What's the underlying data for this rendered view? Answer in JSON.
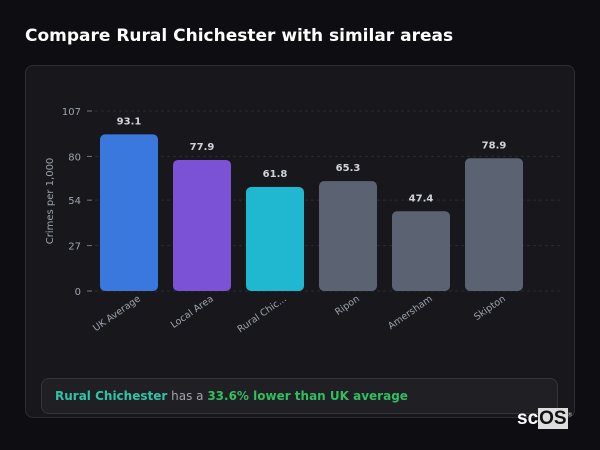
{
  "title": "Compare Rural Chichester with similar areas",
  "chart_data": {
    "type": "bar",
    "ylabel": "Crimes per 1,000",
    "ylim": [
      0,
      107
    ],
    "yticks": [
      0,
      27,
      54,
      80,
      107
    ],
    "grid": true,
    "categories": [
      "UK Average",
      "Local Area",
      "Rural Chic...",
      "Ripon",
      "Amersham",
      "Skipton"
    ],
    "values": [
      93.1,
      77.9,
      61.8,
      65.3,
      47.4,
      78.9
    ],
    "value_labels": [
      "93.1",
      "77.9",
      "61.8",
      "65.3",
      "47.4",
      "78.9"
    ],
    "colors": [
      "#3b78de",
      "#7b52d6",
      "#1fb8d0",
      "#5b6373",
      "#5b6373",
      "#5b6373"
    ]
  },
  "summary": {
    "area": "Rural Chichester",
    "middle": " has a ",
    "comparison": "33.6% lower than UK average"
  },
  "logo": {
    "text1": "sc",
    "text2": "OS",
    "mark": "®"
  }
}
